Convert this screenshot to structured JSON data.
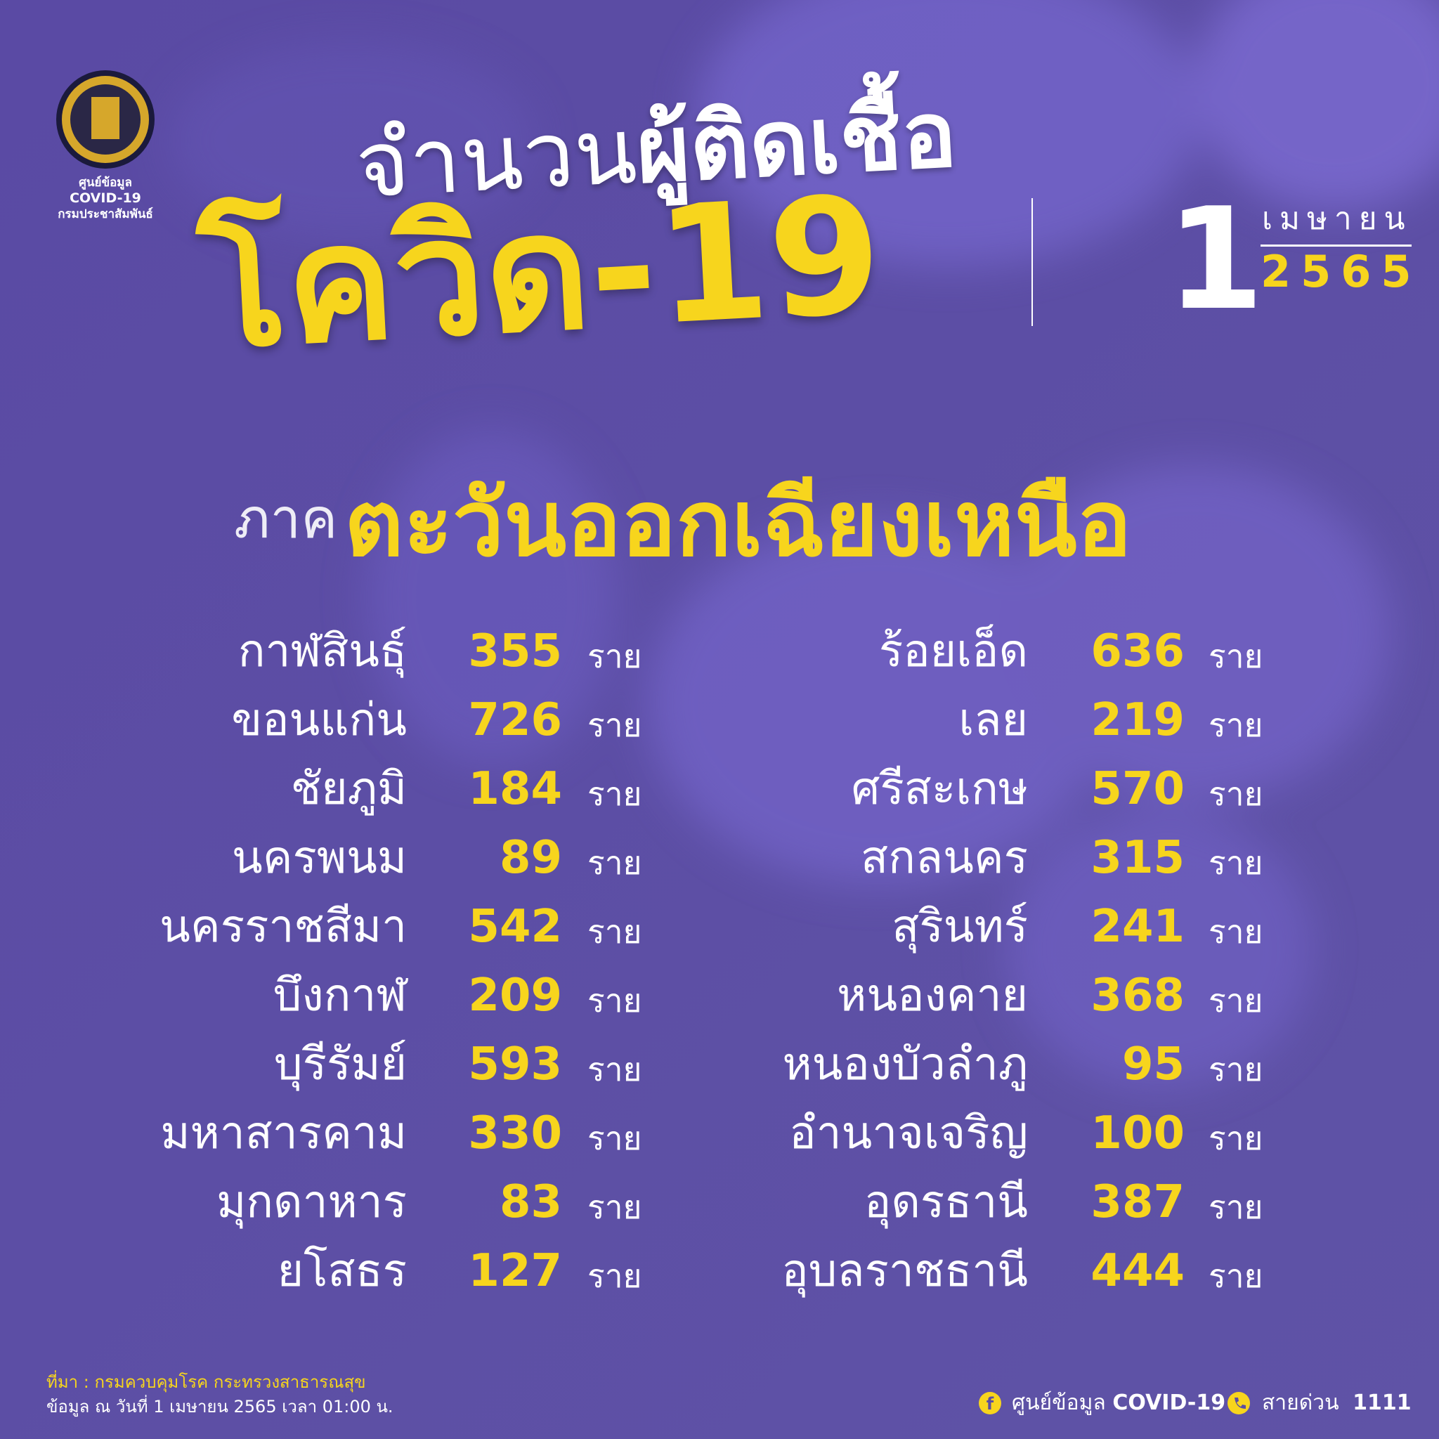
{
  "logo": {
    "line1": "ศูนย์ข้อมูล",
    "line2": "COVID-19",
    "line3": "กรมประชาสัมพันธ์"
  },
  "title": {
    "prefix": "จำนวน",
    "highlight": "ผู้ติดเชื้อ",
    "disease": "โควิด-19"
  },
  "date": {
    "day": "1",
    "month": "เมษายน",
    "year": "2565"
  },
  "region": {
    "prefix": "ภาค",
    "name": "ตะวันออกเฉียงเหนือ"
  },
  "left_column": [
    {
      "province": "กาฬสินธุ์",
      "count": 355,
      "unit": "ราย"
    },
    {
      "province": "ขอนแก่น",
      "count": 726,
      "unit": "ราย"
    },
    {
      "province": "ชัยภูมิ",
      "count": 184,
      "unit": "ราย"
    },
    {
      "province": "นครพนม",
      "count": 89,
      "unit": "ราย"
    },
    {
      "province": "นครราชสีมา",
      "count": 542,
      "unit": "ราย"
    },
    {
      "province": "บึงกาฬ",
      "count": 209,
      "unit": "ราย"
    },
    {
      "province": "บุรีรัมย์",
      "count": 593,
      "unit": "ราย"
    },
    {
      "province": "มหาสารคาม",
      "count": 330,
      "unit": "ราย"
    },
    {
      "province": "มุกดาหาร",
      "count": 83,
      "unit": "ราย"
    },
    {
      "province": "ยโสธร",
      "count": 127,
      "unit": "ราย"
    }
  ],
  "right_column": [
    {
      "province": "ร้อยเอ็ด",
      "count": 636,
      "unit": "ราย"
    },
    {
      "province": "เลย",
      "count": 219,
      "unit": "ราย"
    },
    {
      "province": "ศรีสะเกษ",
      "count": 570,
      "unit": "ราย"
    },
    {
      "province": "สกลนคร",
      "count": 315,
      "unit": "ราย"
    },
    {
      "province": "สุรินทร์",
      "count": 241,
      "unit": "ราย"
    },
    {
      "province": "หนองคาย",
      "count": 368,
      "unit": "ราย"
    },
    {
      "province": "หนองบัวลำภู",
      "count": 95,
      "unit": "ราย"
    },
    {
      "province": "อำนาจเจริญ",
      "count": 100,
      "unit": "ราย"
    },
    {
      "province": "อุดรธานี",
      "count": 387,
      "unit": "ราย"
    },
    {
      "province": "อุบลราชธานี",
      "count": 444,
      "unit": "ราย"
    }
  ],
  "footer": {
    "source_label": "ที่มา :",
    "source": "กรมควบคุมโรค กระทรวงสาธารณสุข",
    "note": "ข้อมูล ณ วันที่ 1 เมษายน 2565 เวลา 01:00 น.",
    "page_name": "ศูนย์ข้อมูล",
    "page_name_bold": "COVID-19",
    "hotline_label": "สายด่วน",
    "hotline": "1111"
  }
}
